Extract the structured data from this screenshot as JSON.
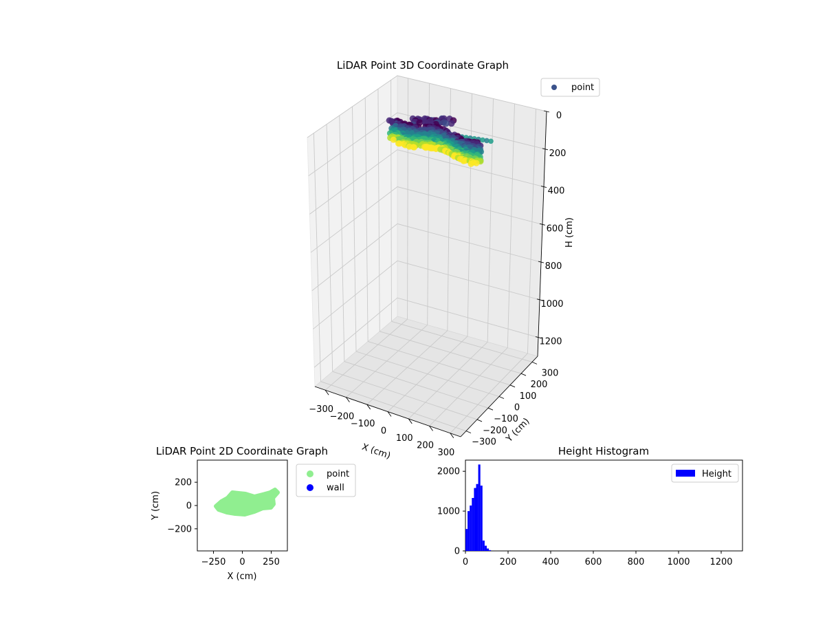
{
  "chart_data": [
    {
      "type": "scatter3d",
      "title": "LiDAR Point 3D Coordinate Graph",
      "xlabel": "X (cm)",
      "ylabel": "Y (cm)",
      "zlabel": "H (cm)",
      "x_ticks": [
        "−300",
        "−200",
        "−100",
        "0",
        "100",
        "200",
        "300"
      ],
      "y_ticks": [
        "−300",
        "−200",
        "−100",
        "0",
        "100",
        "200",
        "300"
      ],
      "z_ticks": [
        "0",
        "200",
        "400",
        "600",
        "800",
        "1000",
        "1200"
      ],
      "xlim": [
        -350,
        350
      ],
      "ylim": [
        -350,
        350
      ],
      "zlim": [
        1300,
        0
      ],
      "zlim_note": "H axis inverted: 0 at top, 1200 at bottom",
      "colormap": "viridis",
      "legend": {
        "label": "point",
        "position": "top-right",
        "marker_color": "#3b528b"
      },
      "grid": true
    },
    {
      "type": "scatter",
      "title": "LiDAR Point 2D Coordinate Graph",
      "xlabel": "X (cm)",
      "ylabel": "Y (cm)",
      "x_ticks": [
        "−250",
        "0",
        "250"
      ],
      "y_ticks": [
        "200",
        "0",
        "−200"
      ],
      "xlim": [
        -390,
        390
      ],
      "ylim": [
        -390,
        390
      ],
      "series": [
        {
          "name": "point",
          "color": "#90ee90"
        },
        {
          "name": "wall",
          "color": "#0000ff"
        }
      ],
      "legend": {
        "position": "outside-right"
      }
    },
    {
      "type": "bar",
      "subtype": "histogram",
      "title": "Height Histogram",
      "x_ticks": [
        "0",
        "200",
        "400",
        "600",
        "800",
        "1000",
        "1200"
      ],
      "y_ticks": [
        "0",
        "1000",
        "2000"
      ],
      "xlim": [
        0,
        1300
      ],
      "ylim": [
        0,
        2280
      ],
      "bin_width": 10,
      "bins_start": [
        0,
        10,
        20,
        30,
        40,
        50,
        60,
        70,
        80,
        90,
        100,
        110
      ],
      "values": [
        550,
        1000,
        1140,
        1330,
        1580,
        1680,
        2170,
        1640,
        260,
        130,
        60,
        20
      ],
      "color": "#0000ff",
      "series": [
        {
          "name": "Height",
          "color": "#0000ff"
        }
      ],
      "legend": {
        "position": "top-right"
      }
    }
  ]
}
